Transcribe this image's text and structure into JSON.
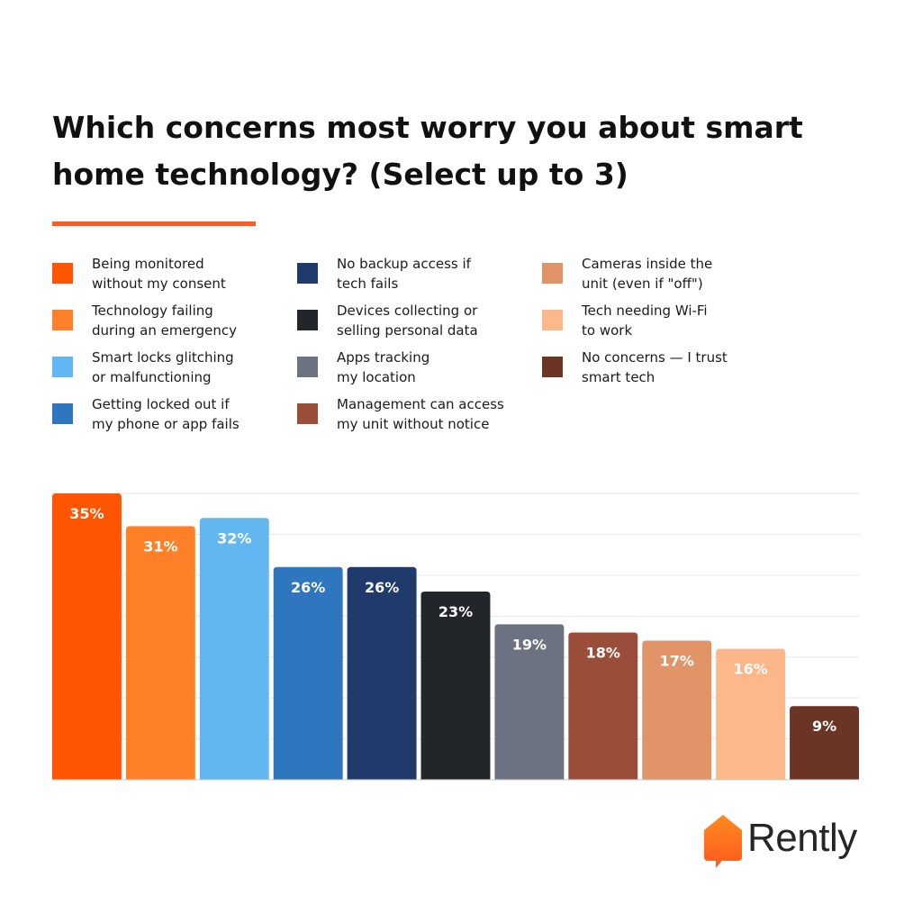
{
  "title": "Which concerns most worry you about smart home technology? (Select up to 3)",
  "colors": {
    "accent": "#ff5a1f",
    "grid": "#e6e6e6",
    "baseline": "#c8c8c8",
    "brand_dark": "#262626"
  },
  "brand": {
    "name": "Rently",
    "icon": "house-chat-bubble-logo-icon"
  },
  "chart_data": {
    "type": "bar",
    "title": "Which concerns most worry you about smart home technology? (Select up to 3)",
    "xlabel": "",
    "ylabel": "",
    "ylim": [
      0,
      35
    ],
    "grid": true,
    "legend_placement": "top",
    "categories": [
      "Being monitored without my consent",
      "Technology failing during an emergency",
      "Smart locks glitching or malfunctioning",
      "Getting locked out if my phone or app fails",
      "No backup access if tech fails",
      "Devices collecting or selling personal data",
      "Apps tracking my location",
      "Management can access my unit without notice",
      "Cameras inside the unit (even if \"off\")",
      "Tech needing Wi-Fi to work",
      "No concerns — I trust smart tech"
    ],
    "values": [
      35,
      31,
      32,
      26,
      26,
      23,
      19,
      18,
      17,
      16,
      9
    ],
    "data_labels": [
      "35%",
      "31%",
      "32%",
      "26%",
      "26%",
      "23%",
      "19%",
      "18%",
      "17%",
      "16%",
      "9%"
    ],
    "colors": [
      "#ff5500",
      "#ff8029",
      "#63b7f0",
      "#2e77bf",
      "#1f3a6b",
      "#222529",
      "#6c727f",
      "#9a4e39",
      "#e09467",
      "#fcb78a",
      "#6a3524"
    ]
  },
  "legend": {
    "columns": [
      [
        {
          "line1": "Being monitored",
          "line2": "without my consent",
          "color": "#ff5500"
        },
        {
          "line1": "Technology failing",
          "line2": "during an emergency",
          "color": "#ff8029"
        },
        {
          "line1": "Smart locks glitching",
          "line2": "or malfunctioning",
          "color": "#63b7f0"
        },
        {
          "line1": "Getting locked out if",
          "line2": "my phone or app fails",
          "color": "#2e77bf"
        }
      ],
      [
        {
          "line1": "No backup access if",
          "line2": "tech fails",
          "color": "#1f3a6b"
        },
        {
          "line1": "Devices collecting or",
          "line2": "selling personal data",
          "color": "#222529"
        },
        {
          "line1": "Apps tracking",
          "line2": "my location",
          "color": "#6c727f"
        },
        {
          "line1": "Management can access",
          "line2": "my unit without notice",
          "color": "#9a4e39"
        }
      ],
      [
        {
          "line1": "Cameras inside the",
          "line2": "unit (even if \"off\")",
          "color": "#e09467"
        },
        {
          "line1": "Tech needing Wi-Fi",
          "line2": "to work",
          "color": "#fcb78a"
        },
        {
          "line1": "No concerns — I trust",
          "line2": "smart tech",
          "color": "#6a3524"
        }
      ]
    ]
  }
}
